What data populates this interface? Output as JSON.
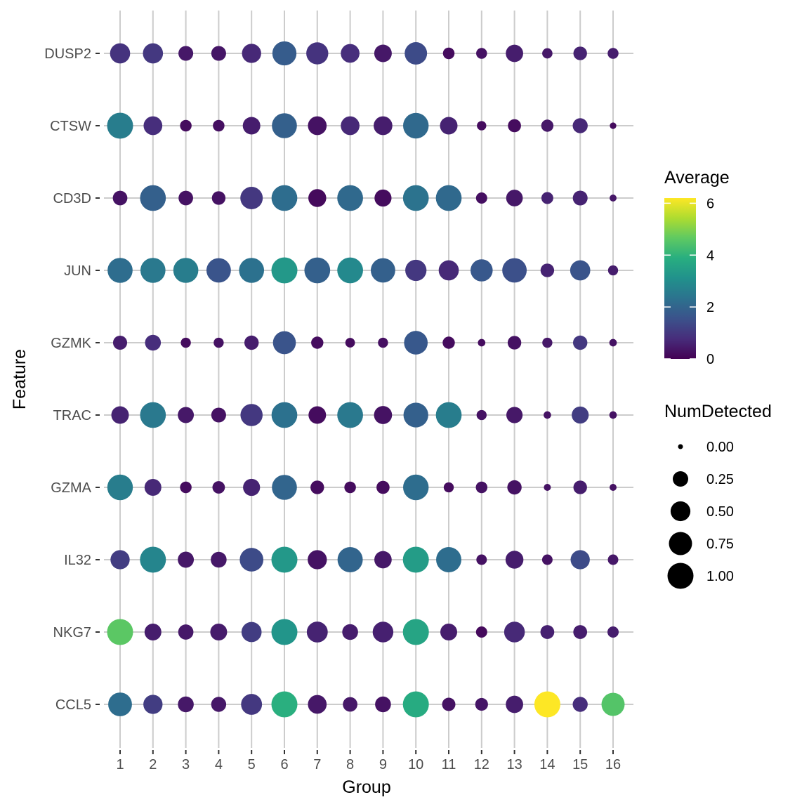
{
  "chart_data": {
    "type": "scatter",
    "subtype": "dot-plot",
    "xlabel": "Group",
    "ylabel": "Feature",
    "groups": [
      "1",
      "2",
      "3",
      "4",
      "5",
      "6",
      "7",
      "8",
      "9",
      "10",
      "11",
      "12",
      "13",
      "14",
      "15",
      "16"
    ],
    "features": [
      "DUSP2",
      "CTSW",
      "CD3D",
      "JUN",
      "GZMK",
      "TRAC",
      "GZMA",
      "IL32",
      "NKG7",
      "CCL5"
    ],
    "grid": true,
    "color_legend": {
      "title": "Average",
      "ticks": [
        0,
        2,
        4,
        6
      ],
      "range": [
        0,
        6.2
      ],
      "palette": "viridis"
    },
    "size_legend": {
      "title": "NumDetected",
      "breaks": [
        0,
        0.25,
        0.5,
        0.75,
        1
      ],
      "labels": [
        "0.00",
        "0.25",
        "0.50",
        "0.75",
        "1.00"
      ],
      "range": [
        0,
        1
      ]
    },
    "legend_position": "right",
    "num_detected": {
      "DUSP2": [
        0.52,
        0.52,
        0.22,
        0.22,
        0.46,
        0.83,
        0.66,
        0.43,
        0.36,
        0.69,
        0.1,
        0.08,
        0.35,
        0.065,
        0.17,
        0.08
      ],
      "CTSW": [
        1.0,
        0.43,
        0.1,
        0.1,
        0.36,
        0.91,
        0.43,
        0.43,
        0.43,
        0.96,
        0.36,
        0.045,
        0.15,
        0.12,
        0.23,
        0.006
      ],
      "CD3D": [
        0.21,
        0.98,
        0.21,
        0.17,
        0.69,
        0.98,
        0.38,
        0.98,
        0.33,
        0.98,
        0.98,
        0.09,
        0.31,
        0.11,
        0.22,
        0.01
      ],
      "JUN": [
        0.91,
        0.91,
        0.91,
        0.86,
        0.91,
        1.0,
        0.98,
        0.98,
        0.86,
        0.6,
        0.52,
        0.67,
        0.86,
        0.17,
        0.52,
        0.06
      ],
      "GZMK": [
        0.19,
        0.27,
        0.06,
        0.06,
        0.2,
        0.73,
        0.12,
        0.05,
        0.06,
        0.79,
        0.12,
        0.015,
        0.17,
        0.06,
        0.2,
        0.015
      ],
      "TRAC": [
        0.36,
        0.98,
        0.28,
        0.22,
        0.67,
        0.98,
        0.36,
        0.98,
        0.39,
        0.89,
        0.98,
        0.06,
        0.29,
        0.015,
        0.33,
        0.015
      ],
      "GZMA": [
        0.96,
        0.32,
        0.1,
        0.13,
        0.33,
        0.91,
        0.17,
        0.1,
        0.15,
        0.96,
        0.06,
        0.1,
        0.2,
        0.01,
        0.17,
        0.01
      ],
      "IL32": [
        0.46,
        1.0,
        0.28,
        0.27,
        0.79,
        1.0,
        0.46,
        0.93,
        0.35,
        1.0,
        0.93,
        0.07,
        0.38,
        0.07,
        0.46,
        0.07
      ],
      "NKG7": [
        1.0,
        0.32,
        0.24,
        0.32,
        0.52,
        1.0,
        0.58,
        0.27,
        0.56,
        1.0,
        0.32,
        0.09,
        0.56,
        0.18,
        0.18,
        0.09
      ],
      "CCL5": [
        0.8,
        0.46,
        0.27,
        0.23,
        0.58,
        1.0,
        0.43,
        0.21,
        0.27,
        1.0,
        0.16,
        0.14,
        0.35,
        1.0,
        0.23,
        0.75
      ]
    },
    "average": {
      "DUSP2": [
        0.9,
        1.0,
        0.4,
        0.35,
        0.7,
        1.8,
        0.9,
        0.8,
        0.4,
        1.4,
        0.2,
        0.3,
        0.5,
        0.4,
        0.6,
        0.5
      ],
      "CTSW": [
        2.6,
        0.8,
        0.2,
        0.25,
        0.5,
        1.9,
        0.3,
        0.7,
        0.5,
        2.1,
        0.6,
        0.2,
        0.2,
        0.4,
        0.7,
        0.2
      ],
      "CD3D": [
        0.3,
        1.9,
        0.3,
        0.3,
        1.0,
        2.2,
        0.15,
        2.1,
        0.2,
        2.35,
        2.1,
        0.25,
        0.4,
        0.6,
        0.6,
        0.4
      ],
      "JUN": [
        2.2,
        2.5,
        2.6,
        1.6,
        2.3,
        3.3,
        1.9,
        2.9,
        1.9,
        1.0,
        0.7,
        1.7,
        1.5,
        0.6,
        1.6,
        0.5
      ],
      "GZMK": [
        0.5,
        0.8,
        0.2,
        0.3,
        0.5,
        1.6,
        0.2,
        0.2,
        0.25,
        1.7,
        0.2,
        0.2,
        0.3,
        0.4,
        1.0,
        0.3
      ],
      "TRAC": [
        0.6,
        2.5,
        0.4,
        0.3,
        1.0,
        2.3,
        0.2,
        2.5,
        0.3,
        1.9,
        2.6,
        0.3,
        0.4,
        0.3,
        1.1,
        0.3
      ],
      "GZMA": [
        2.6,
        0.7,
        0.2,
        0.3,
        0.6,
        2.0,
        0.2,
        0.2,
        0.2,
        2.2,
        0.2,
        0.3,
        0.3,
        0.3,
        0.5,
        0.3
      ],
      "IL32": [
        1.1,
        2.8,
        0.4,
        0.4,
        1.4,
        3.3,
        0.3,
        2.0,
        0.4,
        3.4,
        2.2,
        0.3,
        0.5,
        0.3,
        1.4,
        0.4
      ],
      "NKG7": [
        4.6,
        0.5,
        0.4,
        0.45,
        1.1,
        3.2,
        0.6,
        0.5,
        0.55,
        3.6,
        0.5,
        0.15,
        0.7,
        0.55,
        0.5,
        0.5
      ],
      "CCL5": [
        2.2,
        1.1,
        0.4,
        0.4,
        1.0,
        3.9,
        0.4,
        0.4,
        0.3,
        3.8,
        0.3,
        0.35,
        0.5,
        6.2,
        0.8,
        4.5
      ]
    }
  }
}
